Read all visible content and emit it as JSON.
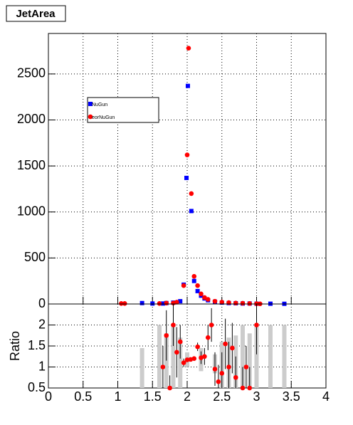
{
  "chart_data": [
    {
      "type": "scatter",
      "title": "JetArea",
      "xlim": [
        0,
        4
      ],
      "xticks": [
        0,
        0.5,
        1,
        1.5,
        2,
        2.5,
        3,
        3.5,
        4
      ],
      "ylim": [
        0,
        2940
      ],
      "yticks": [
        0,
        500,
        1000,
        1500,
        2000,
        2500
      ],
      "grid": true,
      "series": [
        {
          "name": "NuGun",
          "color": "#0000ff",
          "marker": "square",
          "x": [
            1.35,
            1.5,
            1.65,
            1.7,
            1.8,
            1.9,
            1.95,
            1.99,
            2.01,
            2.06,
            2.1,
            2.15,
            2.2,
            2.25,
            2.3,
            2.4,
            2.5,
            2.6,
            2.7,
            2.8,
            2.9,
            3.0,
            3.2,
            3.4
          ],
          "values": [
            10,
            5,
            5,
            10,
            15,
            30,
            210,
            1370,
            2370,
            1010,
            250,
            140,
            90,
            60,
            40,
            25,
            15,
            10,
            8,
            5,
            5,
            3,
            3,
            2
          ]
        },
        {
          "name": "eorNuGun",
          "color": "#ff0000",
          "marker": "circle",
          "x": [
            1.05,
            1.1,
            1.6,
            1.7,
            1.8,
            1.85,
            1.95,
            2.0,
            2.02,
            2.06,
            2.1,
            2.15,
            2.2,
            2.25,
            2.3,
            2.4,
            2.5,
            2.6,
            2.7,
            2.8,
            2.9,
            3.0,
            3.05
          ],
          "values": [
            5,
            5,
            5,
            10,
            10,
            20,
            200,
            1620,
            2780,
            1200,
            300,
            200,
            110,
            70,
            50,
            30,
            20,
            15,
            10,
            8,
            5,
            3,
            2
          ]
        }
      ]
    },
    {
      "type": "ratio",
      "y_label": "Ratio",
      "xlim": [
        0,
        4
      ],
      "xticks": [
        0,
        0.5,
        1,
        1.5,
        2,
        2.5,
        3,
        3.5,
        4
      ],
      "ylim": [
        0.5,
        2.5
      ],
      "yticks": [
        0.5,
        1,
        1.5,
        2
      ],
      "grid": true,
      "bands": {
        "color": "#cccccc",
        "x": [
          1.35,
          1.6,
          1.7,
          1.8,
          1.9,
          2.0,
          2.2,
          2.4,
          2.5,
          2.6,
          2.7,
          2.8,
          2.9,
          3.0,
          3.2,
          3.4
        ],
        "low": [
          0.5,
          0.5,
          0.5,
          0.5,
          0.5,
          1.0,
          0.9,
          0.85,
          0.5,
          0.5,
          0.5,
          0.5,
          0.5,
          0.5,
          0.5,
          0.5
        ],
        "high": [
          1.45,
          2.0,
          1.8,
          2.0,
          1.7,
          1.35,
          1.45,
          1.3,
          1.6,
          1.7,
          1.75,
          2.0,
          1.8,
          2.0,
          2.0,
          2.0
        ]
      },
      "points": {
        "color": "#ff0000",
        "x": [
          1.65,
          1.7,
          1.75,
          1.8,
          1.85,
          1.9,
          1.95,
          2.0,
          2.05,
          2.1,
          2.15,
          2.2,
          2.25,
          2.3,
          2.35,
          2.4,
          2.45,
          2.5,
          2.55,
          2.6,
          2.65,
          2.7,
          2.8,
          2.85,
          2.9,
          3.0
        ],
        "values": [
          1.0,
          1.75,
          0.5,
          2.0,
          1.35,
          1.6,
          1.1,
          1.17,
          1.18,
          1.2,
          1.48,
          1.22,
          1.25,
          1.7,
          2.0,
          0.95,
          0.65,
          0.85,
          1.55,
          1.0,
          1.45,
          0.75,
          0.5,
          1.0,
          0.5,
          2.0
        ],
        "errors": [
          0.5,
          0.6,
          0.3,
          0.5,
          0.6,
          0.4,
          0.1,
          0.05,
          0.05,
          0.05,
          0.1,
          0.15,
          0.2,
          0.3,
          0.4,
          0.4,
          0.4,
          0.5,
          0.6,
          0.6,
          0.6,
          0.5,
          0.5,
          0.5,
          0.5,
          0.7
        ]
      }
    }
  ]
}
